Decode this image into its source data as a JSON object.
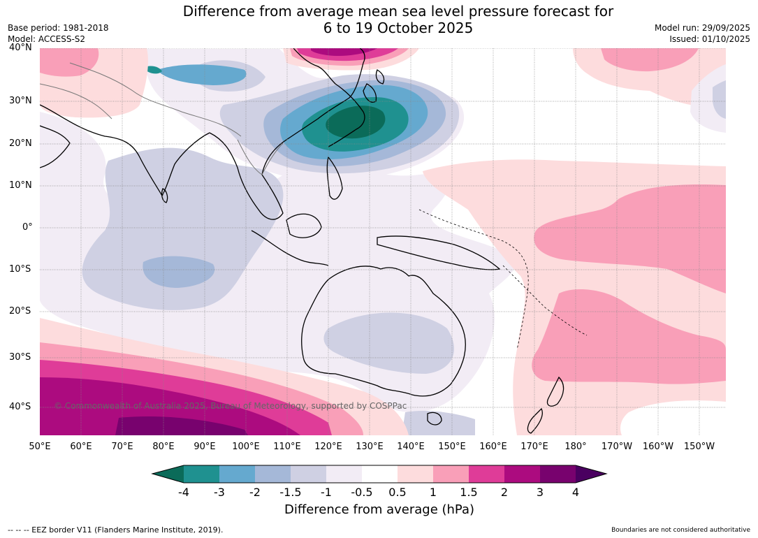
{
  "title": {
    "line1": "Difference from average mean sea level pressure forecast for",
    "line2": "6 to 19 October 2025"
  },
  "meta": {
    "base_period": "Base period: 1981-2018",
    "model": "Model: ACCESS-S2",
    "model_run": "Model run: 29/09/2025",
    "issued": "Issued: 01/10/2025"
  },
  "map": {
    "lat_labels": [
      "40°N",
      "30°N",
      "20°N",
      "10°N",
      "0°",
      "10°S",
      "20°S",
      "30°S",
      "40°S"
    ],
    "lon_labels": [
      "50°E",
      "60°E",
      "70°E",
      "80°E",
      "90°E",
      "100°E",
      "110°E",
      "120°E",
      "130°E",
      "140°E",
      "150°E",
      "160°E",
      "170°E",
      "180°",
      "170°W",
      "160°W",
      "150°W"
    ],
    "copyright": "© Commonwealth of Australia 2025, Bureau of Meteorology, supported by COSPPac"
  },
  "colorbar": {
    "title": "Difference from average (hPa)",
    "ticks": [
      "-4",
      "-3",
      "-2",
      "-1.5",
      "-1",
      "-0.5",
      "0.5",
      "1",
      "1.5",
      "2",
      "3",
      "4"
    ],
    "colors": [
      "#0b6b59",
      "#1f9190",
      "#65a9cf",
      "#a5b8d8",
      "#cfd0e3",
      "#f2ecf5",
      "#ffffff",
      "#fddcdd",
      "#f99fb8",
      "#df3c98",
      "#ac0b7f",
      "#78026e",
      "#4a0060"
    ]
  },
  "footer": {
    "eez": "--  --  -- EEZ border V11 (Flanders Marine Institute, 2019).",
    "boundaries": "Boundaries are not considered authoritative"
  }
}
